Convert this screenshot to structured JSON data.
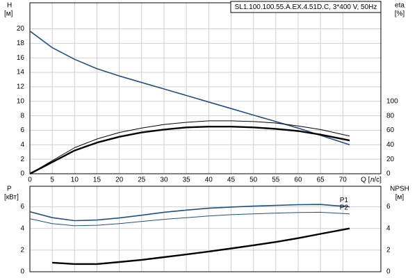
{
  "chart_data": [
    {
      "type": "line",
      "title": "SL1.100.100.55.A.EX.4.51D.C, 3*400 V, 50Hz",
      "y_label": "H",
      "y_unit": "[м]",
      "y2_label": "eta",
      "y2_unit": "[%]",
      "x_label": "Q [л/с]",
      "x": [
        0,
        5,
        10,
        15,
        20,
        25,
        30,
        35,
        40,
        45,
        50,
        55,
        60,
        65,
        71.5
      ],
      "xlim": [
        0,
        78.5
      ],
      "xticks": [
        0,
        5,
        10,
        15,
        20,
        25,
        30,
        35,
        40,
        45,
        50,
        55,
        60,
        65,
        70
      ],
      "ylim": [
        0,
        23.6
      ],
      "yticks": [
        0,
        2,
        4,
        6,
        8,
        10,
        12,
        14,
        16,
        18,
        20
      ],
      "y2lim": [
        0,
        236
      ],
      "y2ticks": [
        0,
        20,
        40,
        60,
        80,
        100
      ],
      "grid": true,
      "series": [
        {
          "color": "#1f4f88",
          "linewidth": 1.6,
          "values": [
            19.7,
            17.4,
            15.8,
            14.5,
            13.5,
            12.6,
            11.7,
            10.8,
            9.9,
            9.0,
            8.1,
            7.2,
            6.3,
            5.3,
            4.0
          ]
        },
        {
          "color": "#000000",
          "linewidth": 1,
          "axis": "y2",
          "values": [
            0,
            18,
            36,
            48,
            57,
            63,
            68,
            71,
            73,
            73,
            72,
            70,
            66,
            61,
            52
          ]
        },
        {
          "color": "#000000",
          "linewidth": 2.4,
          "axis": "y2",
          "values": [
            0,
            16,
            32,
            43,
            51,
            57,
            61,
            64,
            65,
            65,
            64,
            62,
            59,
            54,
            46
          ]
        }
      ]
    },
    {
      "type": "line",
      "y_label": "P",
      "y_unit": "[кВт]",
      "y2_label": "NPSH",
      "y2_unit": "[м]",
      "x": [
        0,
        5,
        10,
        15,
        20,
        25,
        30,
        35,
        40,
        45,
        50,
        55,
        60,
        65,
        71.5
      ],
      "xlim": [
        0,
        78.5
      ],
      "xticks": [
        0,
        5,
        10,
        15,
        20,
        25,
        30,
        35,
        40,
        45,
        50,
        55,
        60,
        65,
        70
      ],
      "ylim": [
        0,
        7.9
      ],
      "yticks": [
        0,
        2,
        4,
        6
      ],
      "y2lim": [
        0,
        7.9
      ],
      "y2ticks": [
        0,
        2,
        4,
        6
      ],
      "grid": true,
      "series": [
        {
          "name": "P1",
          "color": "#1f4f88",
          "linewidth": 1.6,
          "values": [
            5.55,
            5.0,
            4.72,
            4.78,
            4.97,
            5.22,
            5.5,
            5.7,
            5.87,
            5.98,
            6.06,
            6.13,
            6.2,
            6.22,
            6.0
          ]
        },
        {
          "name": "P2",
          "color": "#1f4f88",
          "linewidth": 1,
          "values": [
            4.9,
            4.45,
            4.26,
            4.3,
            4.45,
            4.65,
            4.84,
            5.0,
            5.16,
            5.27,
            5.35,
            5.42,
            5.48,
            5.5,
            5.35
          ]
        },
        {
          "color": "#000000",
          "linewidth": 2.4,
          "axis": "y2",
          "values": [
            null,
            0.84,
            0.71,
            0.71,
            0.9,
            1.1,
            1.35,
            1.6,
            1.87,
            2.15,
            2.45,
            2.75,
            3.1,
            3.5,
            4.0
          ]
        }
      ]
    }
  ]
}
